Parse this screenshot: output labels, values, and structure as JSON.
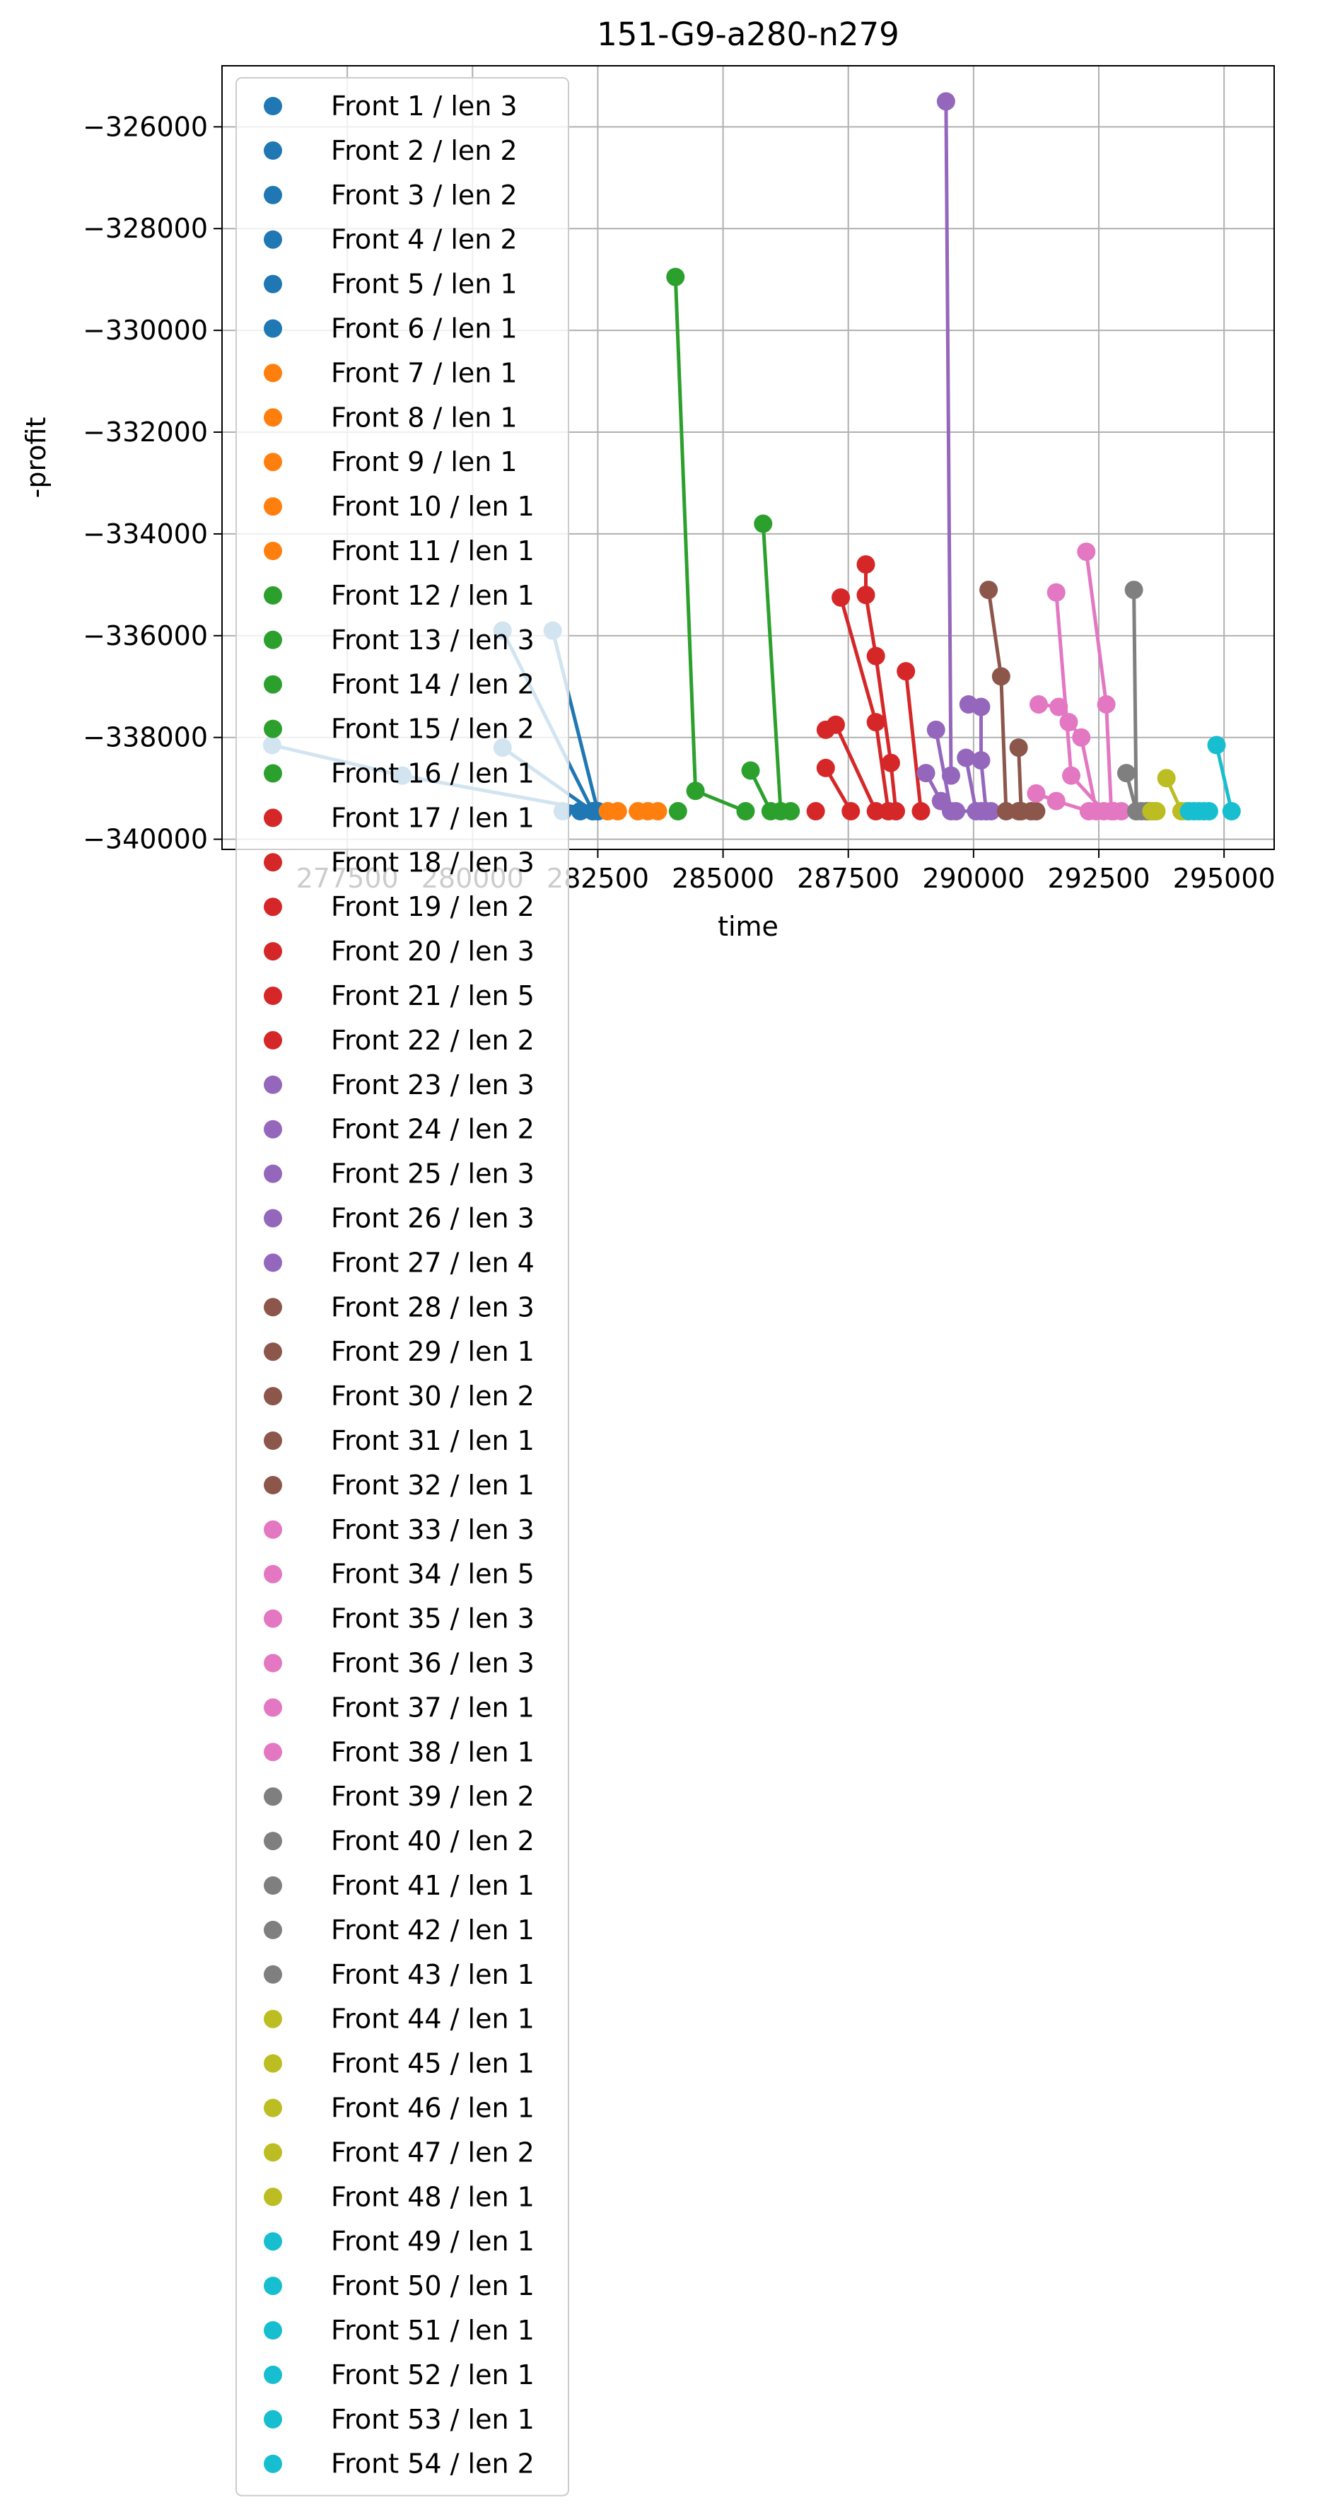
{
  "chart_data": {
    "type": "scatter",
    "title": "151-G9-a280-n279",
    "xlabel": "time",
    "ylabel": "-profit",
    "xlim": [
      275000,
      296000
    ],
    "ylim": [
      -340200,
      -324800
    ],
    "x_ticks": [
      277500,
      280000,
      282500,
      285000,
      287500,
      290000,
      292500,
      295000
    ],
    "x_tick_labels": [
      "277500",
      "280000",
      "282500",
      "285000",
      "287500",
      "290000",
      "292500",
      "295000"
    ],
    "y_ticks": [
      -340000,
      -338000,
      -336000,
      -334000,
      -332000,
      -330000,
      -328000,
      -326000
    ],
    "y_tick_labels": [
      "−340000",
      "−338000",
      "−336000",
      "−334000",
      "−332000",
      "−330000",
      "−328000",
      "−326000"
    ],
    "grid": true,
    "legend_position": "upper-left",
    "series": [
      {
        "name": "Front 1 / len 3",
        "color": "#1f77b4",
        "points": [
          [
            276000,
            -338150
          ],
          [
            278600,
            -338750
          ],
          [
            282500,
            -339450
          ]
        ]
      },
      {
        "name": "Front 2 / len 2",
        "color": "#1f77b4",
        "points": [
          [
            280600,
            -338200
          ],
          [
            282400,
            -339450
          ]
        ]
      },
      {
        "name": "Front 3 / len 2",
        "color": "#1f77b4",
        "points": [
          [
            280600,
            -335900
          ],
          [
            282400,
            -339450
          ]
        ]
      },
      {
        "name": "Front 4 / len 2",
        "color": "#1f77b4",
        "points": [
          [
            281600,
            -335900
          ],
          [
            282500,
            -339450
          ]
        ]
      },
      {
        "name": "Front 5 / len 1",
        "color": "#1f77b4",
        "points": [
          [
            281800,
            -339450
          ]
        ]
      },
      {
        "name": "Front 6 / len 1",
        "color": "#1f77b4",
        "points": [
          [
            282150,
            -339450
          ]
        ]
      },
      {
        "name": "Front 7 / len 1",
        "color": "#ff7f0e",
        "points": [
          [
            282700,
            -339450
          ]
        ]
      },
      {
        "name": "Front 8 / len 1",
        "color": "#ff7f0e",
        "points": [
          [
            282900,
            -339450
          ]
        ]
      },
      {
        "name": "Front 9 / len 1",
        "color": "#ff7f0e",
        "points": [
          [
            283300,
            -339450
          ]
        ]
      },
      {
        "name": "Front 10 / len 1",
        "color": "#ff7f0e",
        "points": [
          [
            283500,
            -339450
          ]
        ]
      },
      {
        "name": "Front 11 / len 1",
        "color": "#ff7f0e",
        "points": [
          [
            283700,
            -339450
          ]
        ]
      },
      {
        "name": "Front 12 / len 1",
        "color": "#2ca02c",
        "points": [
          [
            284100,
            -339450
          ]
        ]
      },
      {
        "name": "Front 13 / len 3",
        "color": "#2ca02c",
        "points": [
          [
            284050,
            -328950
          ],
          [
            284450,
            -339050
          ],
          [
            285450,
            -339450
          ]
        ]
      },
      {
        "name": "Front 14 / len 2",
        "color": "#2ca02c",
        "points": [
          [
            285550,
            -338650
          ],
          [
            285950,
            -339450
          ]
        ]
      },
      {
        "name": "Front 15 / len 2",
        "color": "#2ca02c",
        "points": [
          [
            285800,
            -333800
          ],
          [
            286150,
            -339450
          ]
        ]
      },
      {
        "name": "Front 16 / len 1",
        "color": "#2ca02c",
        "points": [
          [
            286350,
            -339450
          ]
        ]
      },
      {
        "name": "Front 17 / len 1",
        "color": "#d62728",
        "points": [
          [
            286850,
            -339450
          ]
        ]
      },
      {
        "name": "Front 18 / len 3",
        "color": "#d62728",
        "points": [
          [
            287050,
            -337850
          ],
          [
            287250,
            -337750
          ],
          [
            288050,
            -339450
          ]
        ]
      },
      {
        "name": "Front 19 / len 2",
        "color": "#d62728",
        "points": [
          [
            287050,
            -338600
          ],
          [
            287550,
            -339450
          ]
        ]
      },
      {
        "name": "Front 20 / len 3",
        "color": "#d62728",
        "points": [
          [
            287350,
            -335250
          ],
          [
            288050,
            -337700
          ],
          [
            288300,
            -339450
          ]
        ]
      },
      {
        "name": "Front 21 / len 5",
        "color": "#d62728",
        "points": [
          [
            287850,
            -334600
          ],
          [
            287850,
            -335200
          ],
          [
            288050,
            -336400
          ],
          [
            288350,
            -338500
          ],
          [
            288450,
            -339450
          ]
        ]
      },
      {
        "name": "Front 22 / len 2",
        "color": "#d62728",
        "points": [
          [
            288650,
            -336700
          ],
          [
            288950,
            -339450
          ]
        ]
      },
      {
        "name": "Front 23 / len 3",
        "color": "#9467bd",
        "points": [
          [
            289050,
            -338700
          ],
          [
            289350,
            -339250
          ],
          [
            289650,
            -339450
          ]
        ]
      },
      {
        "name": "Front 24 / len 2",
        "color": "#9467bd",
        "points": [
          [
            289450,
            -325500
          ],
          [
            289550,
            -338750
          ]
        ]
      },
      {
        "name": "Front 25 / len 3",
        "color": "#9467bd",
        "points": [
          [
            289250,
            -337850
          ],
          [
            289550,
            -339450
          ],
          [
            290150,
            -339450
          ]
        ]
      },
      {
        "name": "Front 26 / len 3",
        "color": "#9467bd",
        "points": [
          [
            289850,
            -338400
          ],
          [
            290050,
            -339450
          ],
          [
            290350,
            -339450
          ]
        ]
      },
      {
        "name": "Front 27 / len 4",
        "color": "#9467bd",
        "points": [
          [
            289900,
            -337350
          ],
          [
            290150,
            -337400
          ],
          [
            290150,
            -338450
          ],
          [
            290250,
            -339450
          ]
        ]
      },
      {
        "name": "Front 28 / len 3",
        "color": "#8c564b",
        "points": [
          [
            290300,
            -335100
          ],
          [
            290550,
            -336800
          ],
          [
            290650,
            -339450
          ]
        ]
      },
      {
        "name": "Front 29 / len 1",
        "color": "#8c564b",
        "points": [
          [
            290900,
            -339450
          ]
        ]
      },
      {
        "name": "Front 30 / len 2",
        "color": "#8c564b",
        "points": [
          [
            290900,
            -338200
          ],
          [
            290950,
            -339450
          ]
        ]
      },
      {
        "name": "Front 31 / len 1",
        "color": "#8c564b",
        "points": [
          [
            291150,
            -339450
          ]
        ]
      },
      {
        "name": "Front 32 / len 1",
        "color": "#8c564b",
        "points": [
          [
            291250,
            -339450
          ]
        ]
      },
      {
        "name": "Front 33 / len 3",
        "color": "#e377c2",
        "points": [
          [
            291250,
            -339100
          ],
          [
            291650,
            -339250
          ],
          [
            292300,
            -339450
          ]
        ]
      },
      {
        "name": "Front 34 / len 5",
        "color": "#e377c2",
        "points": [
          [
            291300,
            -337350
          ],
          [
            291700,
            -337400
          ],
          [
            291900,
            -337700
          ],
          [
            292150,
            -338000
          ],
          [
            292450,
            -339450
          ]
        ]
      },
      {
        "name": "Front 35 / len 3",
        "color": "#e377c2",
        "points": [
          [
            291650,
            -335150
          ],
          [
            291950,
            -338750
          ],
          [
            292600,
            -339450
          ]
        ]
      },
      {
        "name": "Front 36 / len 3",
        "color": "#e377c2",
        "points": [
          [
            292250,
            -334350
          ],
          [
            292650,
            -337350
          ],
          [
            292750,
            -339450
          ]
        ]
      },
      {
        "name": "Front 37 / len 1",
        "color": "#e377c2",
        "points": [
          [
            292800,
            -339450
          ]
        ]
      },
      {
        "name": "Front 38 / len 1",
        "color": "#e377c2",
        "points": [
          [
            292950,
            -339450
          ]
        ]
      },
      {
        "name": "Front 39 / len 2",
        "color": "#7f7f7f",
        "points": [
          [
            293050,
            -338700
          ],
          [
            293250,
            -339450
          ]
        ]
      },
      {
        "name": "Front 40 / len 2",
        "color": "#7f7f7f",
        "points": [
          [
            293200,
            -335100
          ],
          [
            293250,
            -339450
          ]
        ]
      },
      {
        "name": "Front 41 / len 1",
        "color": "#7f7f7f",
        "points": [
          [
            293350,
            -339450
          ]
        ]
      },
      {
        "name": "Front 42 / len 1",
        "color": "#7f7f7f",
        "points": [
          [
            293450,
            -339450
          ]
        ]
      },
      {
        "name": "Front 43 / len 1",
        "color": "#7f7f7f",
        "points": [
          [
            293500,
            -339450
          ]
        ]
      },
      {
        "name": "Front 44 / len 1",
        "color": "#bcbd22",
        "points": [
          [
            293550,
            -339450
          ]
        ]
      },
      {
        "name": "Front 45 / len 1",
        "color": "#bcbd22",
        "points": [
          [
            293600,
            -339450
          ]
        ]
      },
      {
        "name": "Front 46 / len 1",
        "color": "#bcbd22",
        "points": [
          [
            293650,
            -339450
          ]
        ]
      },
      {
        "name": "Front 47 / len 2",
        "color": "#bcbd22",
        "points": [
          [
            293850,
            -338800
          ],
          [
            294150,
            -339450
          ]
        ]
      },
      {
        "name": "Front 48 / len 1",
        "color": "#bcbd22",
        "points": [
          [
            294250,
            -339450
          ]
        ]
      },
      {
        "name": "Front 49 / len 1",
        "color": "#17becf",
        "points": [
          [
            294300,
            -339450
          ]
        ]
      },
      {
        "name": "Front 50 / len 1",
        "color": "#17becf",
        "points": [
          [
            294400,
            -339450
          ]
        ]
      },
      {
        "name": "Front 51 / len 1",
        "color": "#17becf",
        "points": [
          [
            294500,
            -339450
          ]
        ]
      },
      {
        "name": "Front 52 / len 1",
        "color": "#17becf",
        "points": [
          [
            294600,
            -339450
          ]
        ]
      },
      {
        "name": "Front 53 / len 1",
        "color": "#17becf",
        "points": [
          [
            294700,
            -339450
          ]
        ]
      },
      {
        "name": "Front 54 / len 2",
        "color": "#17becf",
        "points": [
          [
            294850,
            -338150
          ],
          [
            295150,
            -339450
          ]
        ]
      }
    ]
  }
}
